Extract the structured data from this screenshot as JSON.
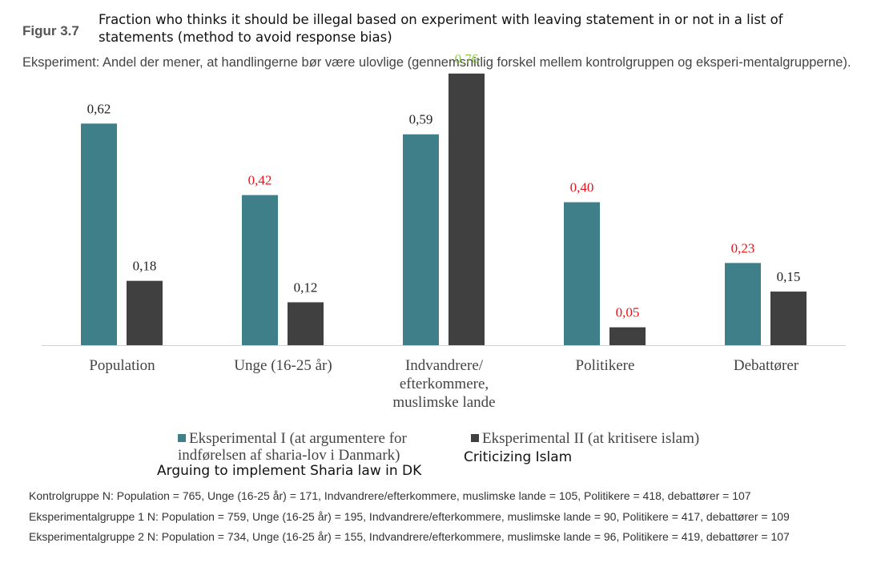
{
  "figure_label": "Figur 3.7",
  "overlay_title": "Fraction who thinks it should be illegal based on experiment with leaving statement in or not in a list of statements (method to avoid response bias)",
  "subtitle": "Eksperiment: Andel der mener, at handlingerne bør være ulovlige (gennemsnitlig forskel mellem kontrolgruppen og eksperi-mentalgrupperne).",
  "legend": {
    "series1": "Eksperimental I (at argumentere for indførelsen af sharia-lov i Danmark)",
    "series2": "Eksperimental II (at kritisere islam)"
  },
  "overlay_captions": {
    "series1": "Arguing to implement Sharia law in DK",
    "series2": "Criticizing Islam"
  },
  "notes": [
    "Kontrolgruppe N: Population = 765, Unge (16-25 år) = 171, Indvandrere/efterkommere, muslimske lande = 105, Politikere = 418, debattører = 107",
    "Eksperimentalgruppe 1 N: Population = 759, Unge (16-25 år) = 195, Indvandrere/efterkommere, muslimske lande = 90, Politikere = 417, debattører = 109",
    "Eksperimentalgruppe 2 N: Population = 734, Unge (16-25 år) = 155, Indvandrere/efterkommere, muslimske lande = 96, Politikere = 419, debattører = 107"
  ],
  "colors": {
    "series1": "#3e7f8a",
    "series2": "#404040",
    "label_black": "#222222",
    "label_red": "#e8141b",
    "label_green": "#92c84f"
  },
  "chart_data": {
    "type": "bar",
    "categories": [
      [
        "Population"
      ],
      [
        "Unge (16-25 år)"
      ],
      [
        "Indvandrere/",
        "efterkommere,",
        "muslimske lande"
      ],
      [
        "Politikere"
      ],
      [
        "Debattører"
      ]
    ],
    "series": [
      {
        "name": "Eksperimental I (at argumentere for indførelsen af sharia-lov i Danmark)",
        "values": [
          0.62,
          0.42,
          0.59,
          0.4,
          0.23
        ],
        "labels": [
          "0,62",
          "0,42",
          "0,59",
          "0,40",
          "0,23"
        ],
        "label_colors": [
          "black",
          "red",
          "black",
          "red",
          "red"
        ]
      },
      {
        "name": "Eksperimental II (at kritisere islam)",
        "values": [
          0.18,
          0.12,
          0.76,
          0.05,
          0.15
        ],
        "labels": [
          "0,18",
          "0,12",
          "0,76",
          "0,05",
          "0,15"
        ],
        "label_colors": [
          "black",
          "black",
          "green",
          "red",
          "black"
        ]
      }
    ],
    "ylim": [
      0,
      0.8
    ],
    "grid": false,
    "legend_position": "bottom"
  }
}
